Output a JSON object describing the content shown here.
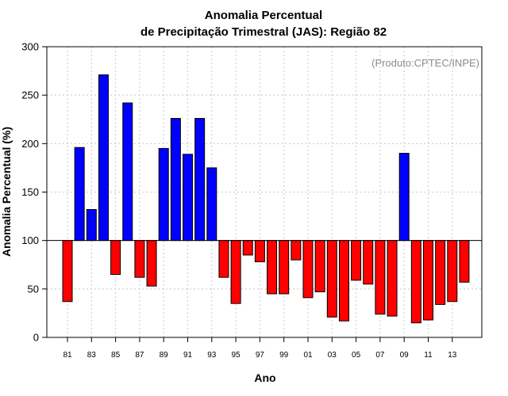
{
  "chart_data": {
    "type": "bar",
    "title": "Anomalia Percentual",
    "subtitle": "de Precipitação Trimestral (JAS): Região 82",
    "xlabel": "Ano",
    "ylabel": "Anomalia Percentual (%)",
    "annotation": "(Produto:CPTEC/INPE)",
    "baseline": 100,
    "ylim": [
      0,
      300
    ],
    "yticks": [
      0,
      50,
      100,
      150,
      200,
      250,
      300
    ],
    "grid": true,
    "above_color": "#0000ff",
    "below_color": "#ff0000",
    "categories": [
      "81",
      "82",
      "83",
      "84",
      "85",
      "86",
      "87",
      "88",
      "89",
      "90",
      "91",
      "92",
      "93",
      "94",
      "95",
      "96",
      "97",
      "98",
      "99",
      "00",
      "01",
      "02",
      "03",
      "04",
      "05",
      "06",
      "07",
      "08",
      "09",
      "10",
      "11",
      "12",
      "13",
      "14"
    ],
    "tick_labels": [
      "81",
      "83",
      "85",
      "87",
      "89",
      "91",
      "93",
      "95",
      "97",
      "99",
      "01",
      "03",
      "05",
      "07",
      "09",
      "11",
      "13"
    ],
    "values": [
      37,
      196,
      132,
      271,
      65,
      242,
      62,
      53,
      195,
      226,
      189,
      226,
      175,
      62,
      35,
      85,
      78,
      45,
      45,
      80,
      41,
      47,
      21,
      17,
      59,
      55,
      24,
      22,
      190,
      15,
      18,
      34,
      37,
      57
    ]
  }
}
